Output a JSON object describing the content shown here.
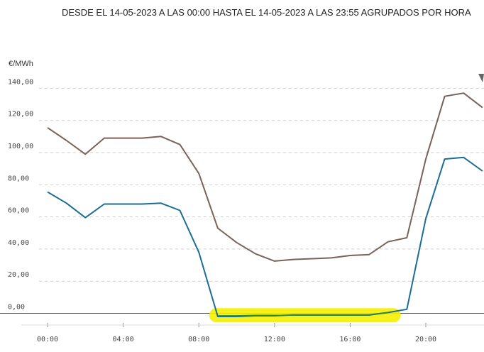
{
  "header": {
    "title": "DESDE EL 14-05-2023 A LAS 00:00 HASTA EL 14-05-2023 A LAS 23:55 AGRUPADOS POR HORA"
  },
  "chart_data": {
    "type": "line",
    "title": "DESDE EL 14-05-2023 A LAS 00:00 HASTA EL 14-05-2023 A LAS 23:55 AGRUPADOS POR HORA",
    "ylabel": "€/MWh",
    "xlabel": "",
    "ylim": [
      -8,
      145
    ],
    "xlim": [
      -1,
      23
    ],
    "grid": true,
    "y_ticks": [
      0,
      20,
      40,
      60,
      80,
      100,
      120,
      140
    ],
    "y_tick_labels": [
      "0,00",
      "20,00",
      "40,00",
      "60,00",
      "80,00",
      "100,00",
      "120,00",
      "140,00"
    ],
    "x_ticks": [
      0,
      4,
      8,
      12,
      16,
      20
    ],
    "x_tick_labels": [
      "00:00",
      "04:00",
      "08:00",
      "12:00",
      "16:00",
      "20:00"
    ],
    "x": [
      0,
      1,
      2,
      3,
      4,
      5,
      6,
      7,
      8,
      9,
      10,
      11,
      12,
      13,
      14,
      15,
      16,
      17,
      18,
      19,
      20,
      21,
      22,
      23
    ],
    "series": [
      {
        "color": "#7a6259",
        "values": [
          115.5,
          107.5,
          99,
          109,
          109,
          109,
          110,
          105,
          87,
          53,
          44,
          37,
          32.5,
          33.5,
          34,
          34.5,
          36,
          36.5,
          44.5,
          47,
          96,
          135,
          137,
          128
        ]
      },
      {
        "color": "#1a6e93",
        "values": [
          75.5,
          68.5,
          59.5,
          68,
          68,
          68,
          68.5,
          64,
          38,
          -2,
          -2,
          -1.5,
          -1.5,
          -1,
          -1,
          -1,
          -1,
          -1,
          0.5,
          2.5,
          59,
          96,
          97,
          88.5
        ]
      },
      {
        "color": "#2d8a3e",
        "values": [
          null,
          null,
          null,
          null,
          null,
          null,
          null,
          null,
          null,
          -1.5,
          -1.5,
          -1.2,
          -1.2,
          -1.2,
          -1.2,
          -1.2,
          -1.2,
          -1.2,
          0.5,
          null,
          null,
          null,
          null,
          null
        ]
      }
    ],
    "annotations": [
      {
        "type": "highlight",
        "color": "#f4f000",
        "x_range": [
          9,
          18.3
        ]
      }
    ]
  }
}
